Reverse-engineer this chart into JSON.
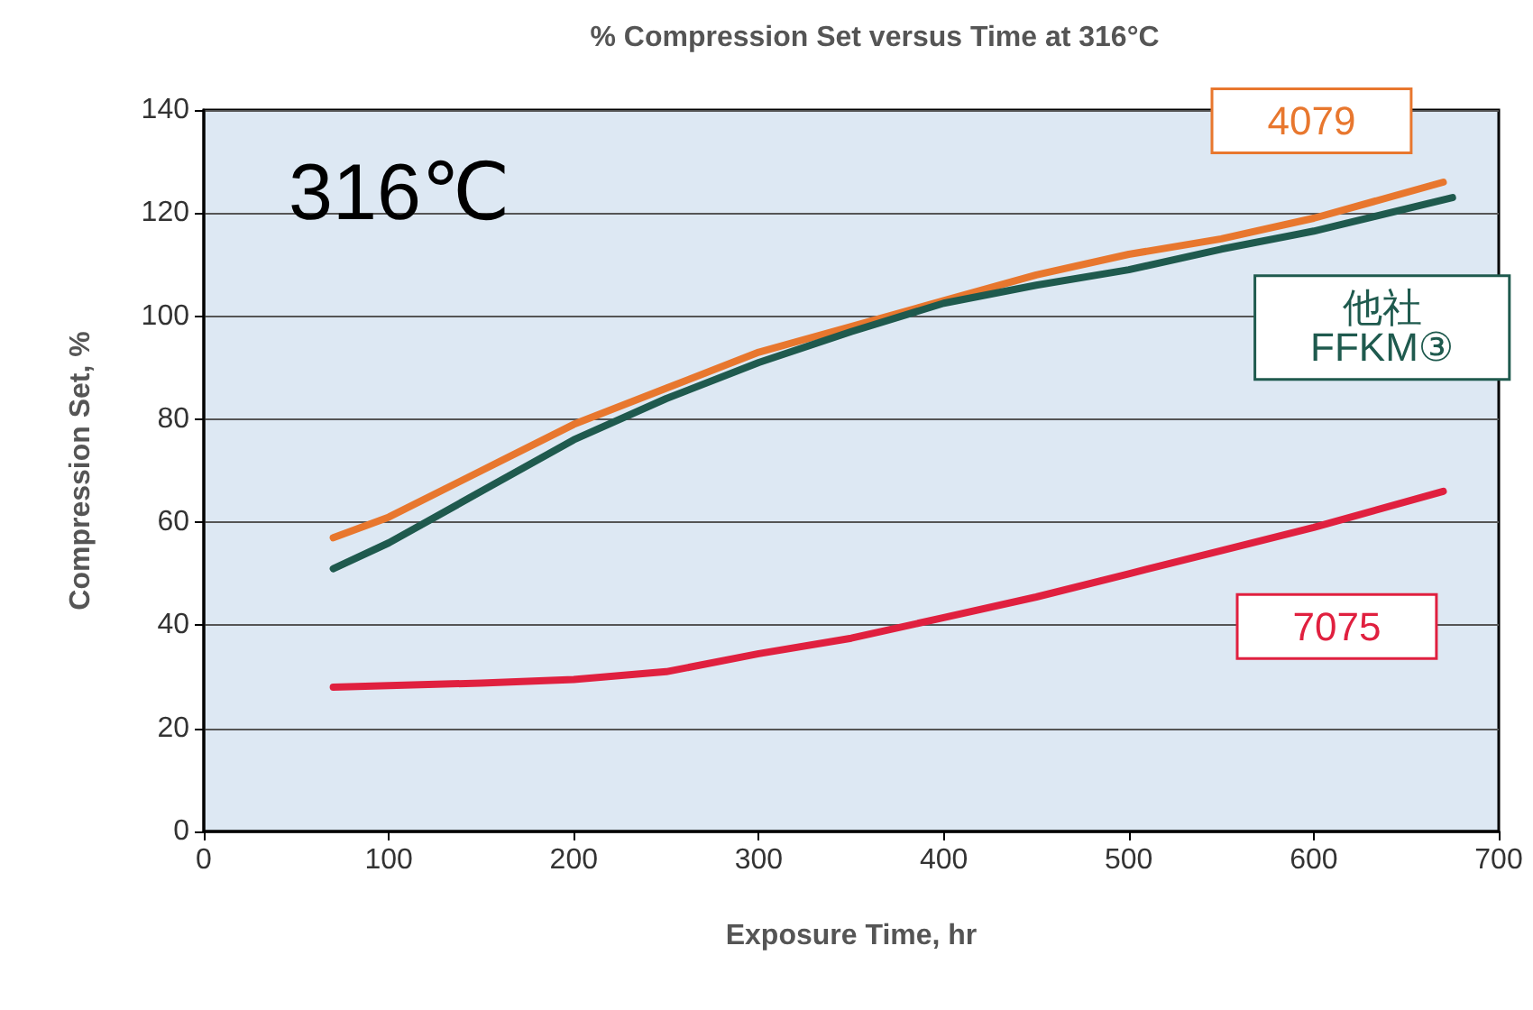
{
  "chart_data": {
    "type": "line",
    "title": "% Compression Set versus Time at 316°C",
    "xlabel": "Exposure Time, hr",
    "ylabel": "Compression Set, %",
    "annotations": [
      "316℃"
    ],
    "series": [
      {
        "name": "4079",
        "color": "#e8772e",
        "x": [
          70,
          100,
          150,
          200,
          250,
          300,
          350,
          400,
          450,
          500,
          550,
          600,
          670
        ],
        "values": [
          57,
          61,
          70,
          79,
          86,
          93,
          98,
          103,
          108,
          112,
          115,
          119,
          126
        ]
      },
      {
        "name": "他社\nFFKM③",
        "color": "#1f5a4e",
        "x": [
          70,
          100,
          150,
          200,
          250,
          300,
          350,
          400,
          450,
          500,
          550,
          600,
          675
        ],
        "values": [
          51,
          56,
          66,
          76,
          84,
          91,
          97,
          102.5,
          106,
          109,
          113,
          116.5,
          123
        ]
      },
      {
        "name": "7075",
        "color": "#e0203f",
        "x": [
          70,
          100,
          150,
          200,
          250,
          300,
          350,
          400,
          450,
          500,
          550,
          600,
          670
        ],
        "values": [
          28,
          28.3,
          28.8,
          29.5,
          31,
          34.5,
          37.5,
          41.5,
          45.5,
          50,
          54.5,
          59,
          66
        ]
      }
    ],
    "xlim": [
      0,
      700
    ],
    "xticks": [
      0,
      100,
      200,
      300,
      400,
      500,
      600,
      700
    ],
    "ylim": [
      0,
      140
    ],
    "yticks": [
      0,
      20,
      40,
      60,
      80,
      100,
      120,
      140
    ],
    "grid": "y",
    "legend": false,
    "marker": "none",
    "line_style": "solid"
  }
}
